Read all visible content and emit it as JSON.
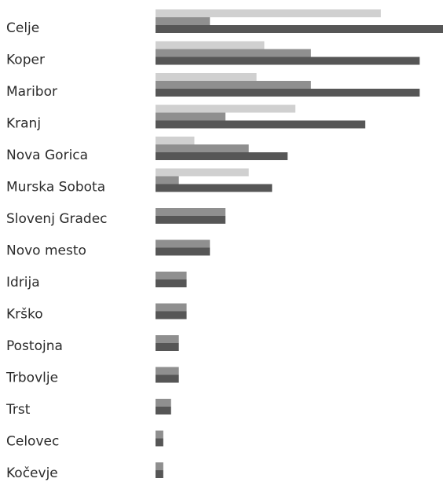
{
  "chart_data": {
    "type": "bar",
    "orientation": "horizontal",
    "title": "",
    "xlabel": "",
    "ylabel": "",
    "grid": false,
    "legend": "none",
    "xlim": [
      0,
      37
    ],
    "categories": [
      "Celje",
      "Koper",
      "Maribor",
      "Kranj",
      "Nova Gorica",
      "Murska Sobota",
      "Slovenj Gradec",
      "Novo mesto",
      "Idrija",
      "Krško",
      "Postojna",
      "Trbovlje",
      "Trst",
      "Celovec",
      "Kočevje"
    ],
    "series": [
      {
        "color": "#d0d0d0",
        "values": [
          29,
          14,
          13,
          18,
          5,
          12,
          0,
          0,
          0,
          0,
          0,
          0,
          0,
          0,
          0
        ]
      },
      {
        "color": "#8f8f8f",
        "values": [
          7,
          20,
          20,
          9,
          12,
          3,
          9,
          7,
          4,
          4,
          3,
          3,
          2,
          1,
          1
        ]
      },
      {
        "color": "#565656",
        "values": [
          37,
          34,
          34,
          27,
          17,
          15,
          9,
          7,
          4,
          4,
          3,
          3,
          2,
          1,
          1
        ]
      }
    ]
  }
}
